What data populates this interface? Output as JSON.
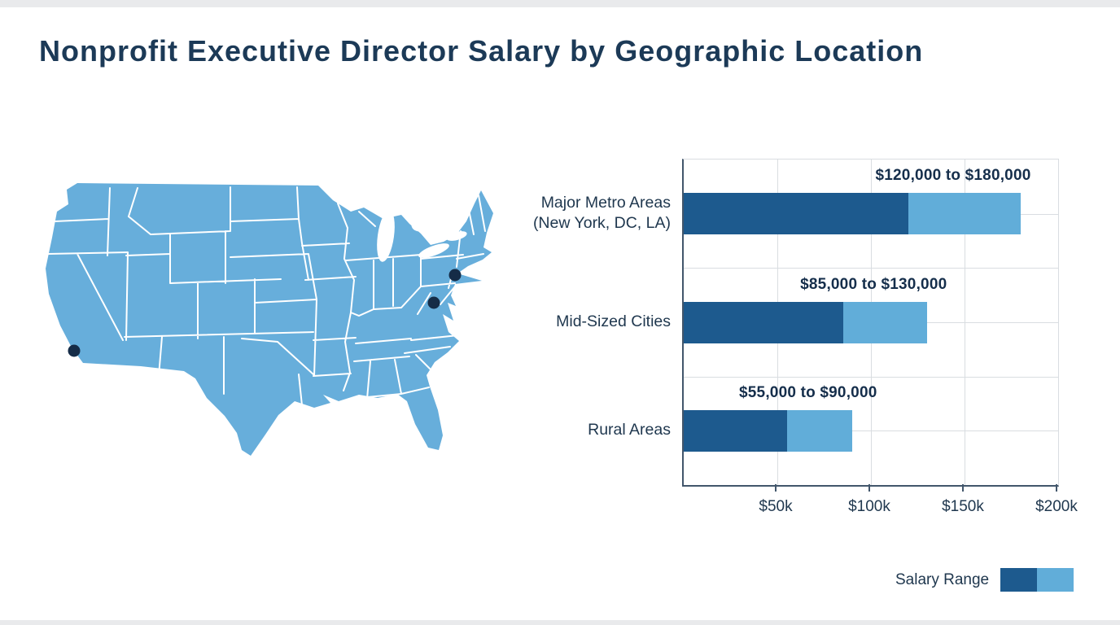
{
  "title": "Nonprofit Executive Director Salary by Geographic Location",
  "chart_data": {
    "type": "bar",
    "orientation": "horizontal",
    "categories": [
      "Major Metro Areas\n(New York, DC, LA)",
      "Mid-Sized Cities",
      "Rural Areas"
    ],
    "series": [
      {
        "name": "Salary range minimum",
        "values": [
          120000,
          85000,
          55000
        ],
        "color": "#1d5a8e"
      },
      {
        "name": "Salary range maximum",
        "values": [
          180000,
          130000,
          90000
        ],
        "color": "#61add9"
      }
    ],
    "bar_labels": [
      "$120,000 to $180,000",
      "$85,000 to $130,000",
      "$55,000 to $90,000"
    ],
    "x_ticks": [
      {
        "value": 50000,
        "label": "$50k"
      },
      {
        "value": 100000,
        "label": "$100k"
      },
      {
        "value": 150000,
        "label": "$150k"
      },
      {
        "value": 200000,
        "label": "$200k"
      }
    ],
    "xlim": [
      0,
      200000
    ],
    "grid": true,
    "legend": {
      "label": "Salary Range",
      "position": "bottom-right"
    }
  },
  "map": {
    "region": "United States",
    "fill_color": "#67aedb",
    "border_color": "#ffffff",
    "marker_color": "#152c47",
    "markers": [
      {
        "label": "LA",
        "x": 46,
        "y": 209
      },
      {
        "label": "DC",
        "x": 488,
        "y": 150
      },
      {
        "label": "New York",
        "x": 514,
        "y": 116
      }
    ]
  },
  "colors": {
    "background": "#ffffff",
    "title_text": "#1c3a57",
    "body_text": "#20384f",
    "value_label_text": "#152e4b",
    "bar_min": "#1d5a8e",
    "bar_range": "#61add9",
    "gridline": "#d9dde1",
    "axis": "#42566b"
  }
}
